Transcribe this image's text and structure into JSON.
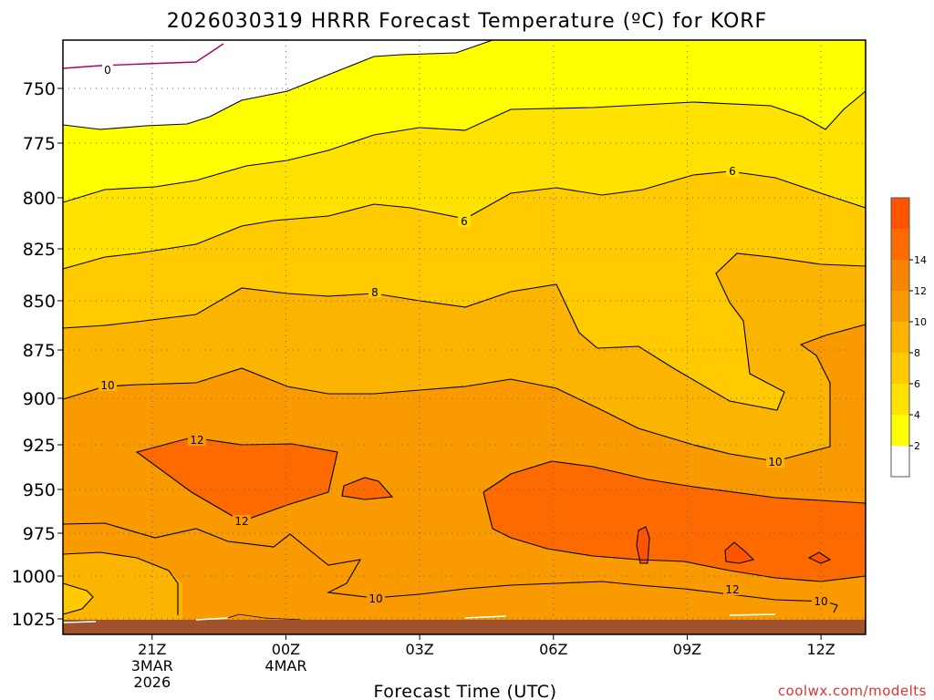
{
  "chart_data": {
    "type": "contour",
    "title": "2026030319 HRRR Forecast Temperature (ºC) for KORF",
    "xlabel": "Forecast Time (UTC)",
    "watermark": "coolwx.com/modelts",
    "x_ticks": [
      {
        "hour": -3,
        "lines": [
          "21Z",
          "3MAR",
          "2026"
        ]
      },
      {
        "hour": 0,
        "lines": [
          "00Z",
          "4MAR"
        ]
      },
      {
        "hour": 3,
        "lines": [
          "03Z"
        ]
      },
      {
        "hour": 6,
        "lines": [
          "06Z"
        ]
      },
      {
        "hour": 9,
        "lines": [
          "09Z"
        ]
      },
      {
        "hour": 12,
        "lines": [
          "12Z"
        ]
      }
    ],
    "y_ticks": [
      "750",
      "775",
      "800",
      "825",
      "850",
      "875",
      "900",
      "925",
      "950",
      "975",
      "1000",
      "1025"
    ],
    "x_range_hours": [
      -5,
      13
    ],
    "y_axis": "pressure (hPa), inverted",
    "colorbar": {
      "labels": [
        "2",
        "4",
        "6",
        "8",
        "10",
        "12",
        "14"
      ],
      "bins": [
        {
          "color": "#ffffff"
        },
        {
          "color": "#ffff00"
        },
        {
          "color": "#ffe200"
        },
        {
          "color": "#ffcb00"
        },
        {
          "color": "#fbb400"
        },
        {
          "color": "#f99a00"
        },
        {
          "color": "#f88500"
        },
        {
          "color": "#fc6a00"
        },
        {
          "color": "#fe5400"
        }
      ]
    },
    "contour_labels": [
      "0",
      "6",
      "6",
      "8",
      "10",
      "10",
      "12",
      "12",
      "10",
      "12",
      "10"
    ],
    "ground_color": "#a0522d"
  }
}
